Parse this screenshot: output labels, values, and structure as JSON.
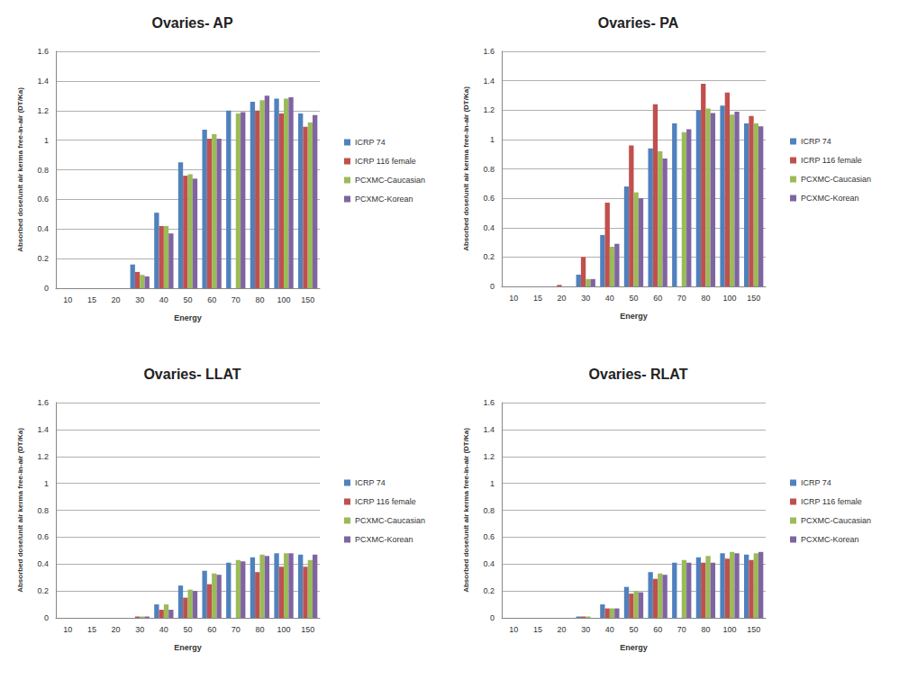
{
  "chart_data": [
    {
      "type": "bar",
      "title": "Ovaries- AP",
      "x_label": "Energy",
      "y_label": "Absorbed dose/unit air kerma free-in-air (DT/Ka)",
      "categories": [
        "10",
        "15",
        "20",
        "30",
        "40",
        "50",
        "60",
        "70",
        "80",
        "100",
        "150"
      ],
      "series": [
        {
          "name": "ICRP 74",
          "color": "#4f81bd",
          "values": [
            0,
            0,
            0,
            0.16,
            0.51,
            0.85,
            1.07,
            1.2,
            1.26,
            1.28,
            1.18
          ]
        },
        {
          "name": "ICRP 116 female",
          "color": "#c0504d",
          "values": [
            0,
            0,
            0,
            0.11,
            0.42,
            0.76,
            1.01,
            null,
            1.2,
            1.18,
            1.09
          ]
        },
        {
          "name": "PCXMC-Caucasian",
          "color": "#9bbb59",
          "values": [
            0,
            0,
            0,
            0.09,
            0.42,
            0.77,
            1.04,
            1.18,
            1.27,
            1.28,
            1.12
          ]
        },
        {
          "name": "PCXMC-Korean",
          "color": "#8064a2",
          "values": [
            0,
            0,
            0,
            0.08,
            0.37,
            0.74,
            1.01,
            1.19,
            1.3,
            1.29,
            1.17
          ]
        }
      ],
      "ylim": [
        0,
        1.6
      ],
      "yticks": [
        0,
        0.2,
        0.4,
        0.6,
        0.8,
        1,
        1.2,
        1.4,
        1.6
      ],
      "grid": true,
      "legend": "right"
    },
    {
      "type": "bar",
      "title": "Ovaries- PA",
      "x_label": "Energy",
      "y_label": "Absorbed dose/unit air kerma free-in-air (DT/Ka)",
      "categories": [
        "10",
        "15",
        "20",
        "30",
        "40",
        "50",
        "60",
        "70",
        "80",
        "100",
        "150"
      ],
      "series": [
        {
          "name": "ICRP 74",
          "color": "#4f81bd",
          "values": [
            0,
            0,
            0,
            0.08,
            0.35,
            0.68,
            0.94,
            1.11,
            1.2,
            1.23,
            1.11
          ]
        },
        {
          "name": "ICRP 116 female",
          "color": "#c0504d",
          "values": [
            0,
            0,
            0.01,
            0.2,
            0.57,
            0.96,
            1.24,
            null,
            1.38,
            1.32,
            1.16
          ]
        },
        {
          "name": "PCXMC-Caucasian",
          "color": "#9bbb59",
          "values": [
            0,
            0,
            0,
            0.05,
            0.27,
            0.64,
            0.92,
            1.05,
            1.21,
            1.17,
            1.11
          ]
        },
        {
          "name": "PCXMC-Korean",
          "color": "#8064a2",
          "values": [
            0,
            0,
            0,
            0.05,
            0.29,
            0.6,
            0.87,
            1.07,
            1.18,
            1.19,
            1.09
          ]
        }
      ],
      "ylim": [
        0,
        1.6
      ],
      "yticks": [
        0,
        0.2,
        0.4,
        0.6,
        0.8,
        1,
        1.2,
        1.4,
        1.6
      ],
      "grid": true,
      "legend": "right"
    },
    {
      "type": "bar",
      "title": "Ovaries- LLAT",
      "x_label": "Energy",
      "y_label": "Absorbed dose/unit air kerma free-in-air (DT/Ka)",
      "categories": [
        "10",
        "15",
        "20",
        "30",
        "40",
        "50",
        "60",
        "70",
        "80",
        "100",
        "150"
      ],
      "series": [
        {
          "name": "ICRP 74",
          "color": "#4f81bd",
          "values": [
            0,
            0,
            0,
            0,
            0.1,
            0.24,
            0.35,
            0.41,
            0.45,
            0.48,
            0.47
          ]
        },
        {
          "name": "ICRP 116 female",
          "color": "#c0504d",
          "values": [
            0,
            0,
            0,
            0.01,
            0.06,
            0.15,
            0.25,
            null,
            0.34,
            0.38,
            0.38
          ]
        },
        {
          "name": "PCXMC-Caucasian",
          "color": "#9bbb59",
          "values": [
            0,
            0,
            0,
            0.01,
            0.1,
            0.21,
            0.33,
            0.43,
            0.47,
            0.48,
            0.43
          ]
        },
        {
          "name": "PCXMC-Korean",
          "color": "#8064a2",
          "values": [
            0,
            0,
            0,
            0.01,
            0.06,
            0.2,
            0.32,
            0.42,
            0.46,
            0.48,
            0.47
          ]
        }
      ],
      "ylim": [
        0,
        1.6
      ],
      "yticks": [
        0,
        0.2,
        0.4,
        0.6,
        0.8,
        1,
        1.2,
        1.4,
        1.6
      ],
      "grid": true,
      "legend": "right"
    },
    {
      "type": "bar",
      "title": "Ovaries- RLAT",
      "x_label": "Energy",
      "y_label": "Absorbed dose/unit air kerma free-in-air (DT/Ka)",
      "categories": [
        "10",
        "15",
        "20",
        "30",
        "40",
        "50",
        "60",
        "70",
        "80",
        "100",
        "150"
      ],
      "series": [
        {
          "name": "ICRP 74",
          "color": "#4f81bd",
          "values": [
            0,
            0,
            0,
            0.01,
            0.1,
            0.23,
            0.34,
            0.41,
            0.45,
            0.48,
            0.47
          ]
        },
        {
          "name": "ICRP 116 female",
          "color": "#c0504d",
          "values": [
            0,
            0,
            0,
            0.01,
            0.07,
            0.18,
            0.29,
            null,
            0.41,
            0.44,
            0.43
          ]
        },
        {
          "name": "PCXMC-Caucasian",
          "color": "#9bbb59",
          "values": [
            0,
            0,
            0,
            0.01,
            0.07,
            0.2,
            0.33,
            0.43,
            0.46,
            0.49,
            0.48
          ]
        },
        {
          "name": "PCXMC-Korean",
          "color": "#8064a2",
          "values": [
            0,
            0,
            0,
            0,
            0.07,
            0.19,
            0.32,
            0.41,
            0.41,
            0.48,
            0.49
          ]
        }
      ],
      "ylim": [
        0,
        1.6
      ],
      "yticks": [
        0,
        0.2,
        0.4,
        0.6,
        0.8,
        1,
        1.2,
        1.4,
        1.6
      ],
      "grid": true,
      "legend": "right"
    }
  ]
}
